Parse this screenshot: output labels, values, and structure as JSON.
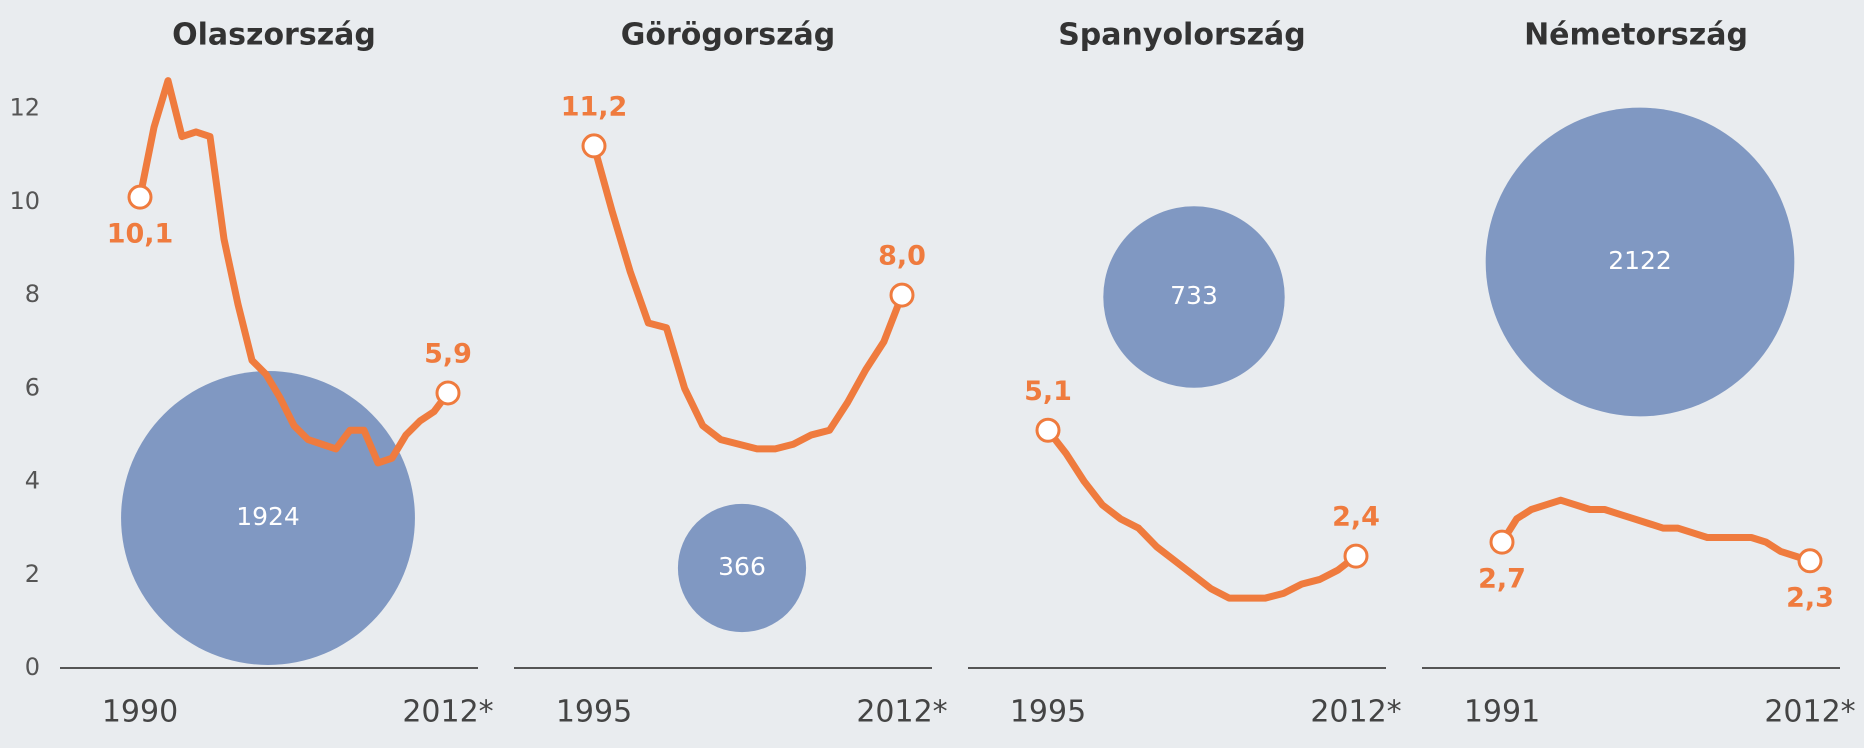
{
  "chart_data": [
    {
      "type": "line",
      "title": "Olaszország",
      "color": "#ef7b3e",
      "bubble_color": "#8098c2",
      "x": [
        1990,
        1991,
        1992,
        1993,
        1994,
        1995,
        1996,
        1997,
        1998,
        1999,
        2000,
        2001,
        2002,
        2003,
        2004,
        2005,
        2006,
        2007,
        2008,
        2009,
        2010,
        2011,
        2012
      ],
      "values": [
        10.1,
        11.6,
        12.6,
        11.4,
        11.5,
        11.4,
        9.2,
        7.8,
        6.6,
        6.3,
        5.8,
        5.2,
        4.9,
        4.8,
        4.7,
        5.1,
        5.1,
        4.4,
        4.5,
        5.0,
        5.3,
        5.5,
        5.9
      ],
      "value_labels": [
        "10,1",
        null,
        null,
        null,
        null,
        null,
        null,
        null,
        null,
        null,
        null,
        null,
        null,
        null,
        null,
        null,
        null,
        null,
        null,
        null,
        null,
        null,
        "5,9"
      ],
      "bubble": 1924,
      "xlim": [
        1990,
        2012
      ],
      "xticks": [
        1990,
        {
          "value": 2012,
          "label": "2012*"
        }
      ],
      "ylim": [
        0,
        13
      ],
      "yticks": [
        0,
        2,
        4,
        6,
        8,
        10,
        12
      ]
    },
    {
      "type": "line",
      "title": "Görögország",
      "color": "#ef7b3e",
      "bubble_color": "#8098c2",
      "x": [
        1995,
        1996,
        1997,
        1998,
        1999,
        2000,
        2001,
        2002,
        2003,
        2004,
        2005,
        2006,
        2007,
        2008,
        2009,
        2010,
        2011,
        2012
      ],
      "values": [
        11.2,
        9.8,
        8.5,
        7.4,
        7.3,
        6.0,
        5.2,
        4.9,
        4.8,
        4.7,
        4.7,
        4.8,
        5.0,
        5.1,
        5.7,
        6.4,
        7.0,
        8.0
      ],
      "value_labels": [
        "11,2",
        null,
        null,
        null,
        null,
        null,
        null,
        null,
        null,
        null,
        null,
        null,
        null,
        null,
        null,
        null,
        null,
        "8,0"
      ],
      "bubble": 366,
      "xlim": [
        1995,
        2012
      ],
      "xticks": [
        1995,
        {
          "value": 2012,
          "label": "2012*"
        }
      ],
      "ylim": [
        0,
        13
      ]
    },
    {
      "type": "line",
      "title": "Spanyolország",
      "color": "#ef7b3e",
      "bubble_color": "#8098c2",
      "x": [
        1995,
        1996,
        1997,
        1998,
        1999,
        2000,
        2001,
        2002,
        2003,
        2004,
        2005,
        2006,
        2007,
        2008,
        2009,
        2010,
        2011,
        2012
      ],
      "values": [
        5.1,
        4.6,
        4.0,
        3.5,
        3.2,
        3.0,
        2.6,
        2.3,
        2.0,
        1.7,
        1.5,
        1.5,
        1.5,
        1.6,
        1.8,
        1.9,
        2.1,
        2.4
      ],
      "value_labels": [
        "5,1",
        null,
        null,
        null,
        null,
        null,
        null,
        null,
        null,
        null,
        null,
        null,
        null,
        null,
        null,
        null,
        null,
        "2,4"
      ],
      "bubble": 733,
      "xlim": [
        1995,
        2012
      ],
      "xticks": [
        1995,
        {
          "value": 2012,
          "label": "2012*"
        }
      ],
      "ylim": [
        0,
        13
      ]
    },
    {
      "type": "line",
      "title": "Németország",
      "color": "#ef7b3e",
      "bubble_color": "#8098c2",
      "x": [
        1991,
        1992,
        1993,
        1994,
        1995,
        1996,
        1997,
        1998,
        1999,
        2000,
        2001,
        2002,
        2003,
        2004,
        2005,
        2006,
        2007,
        2008,
        2009,
        2010,
        2011,
        2012
      ],
      "values": [
        2.7,
        3.2,
        3.4,
        3.5,
        3.6,
        3.5,
        3.4,
        3.4,
        3.3,
        3.2,
        3.1,
        3.0,
        3.0,
        2.9,
        2.8,
        2.8,
        2.8,
        2.8,
        2.7,
        2.5,
        2.4,
        2.3
      ],
      "value_labels": [
        "2,7",
        null,
        null,
        null,
        null,
        null,
        null,
        null,
        null,
        null,
        null,
        null,
        null,
        null,
        null,
        null,
        null,
        null,
        null,
        null,
        null,
        "2,3"
      ],
      "bubble": 2122,
      "xlim": [
        1991,
        2012
      ],
      "xticks": [
        1991,
        {
          "value": 2012,
          "label": "2012*"
        }
      ],
      "ylim": [
        0,
        13
      ]
    }
  ]
}
